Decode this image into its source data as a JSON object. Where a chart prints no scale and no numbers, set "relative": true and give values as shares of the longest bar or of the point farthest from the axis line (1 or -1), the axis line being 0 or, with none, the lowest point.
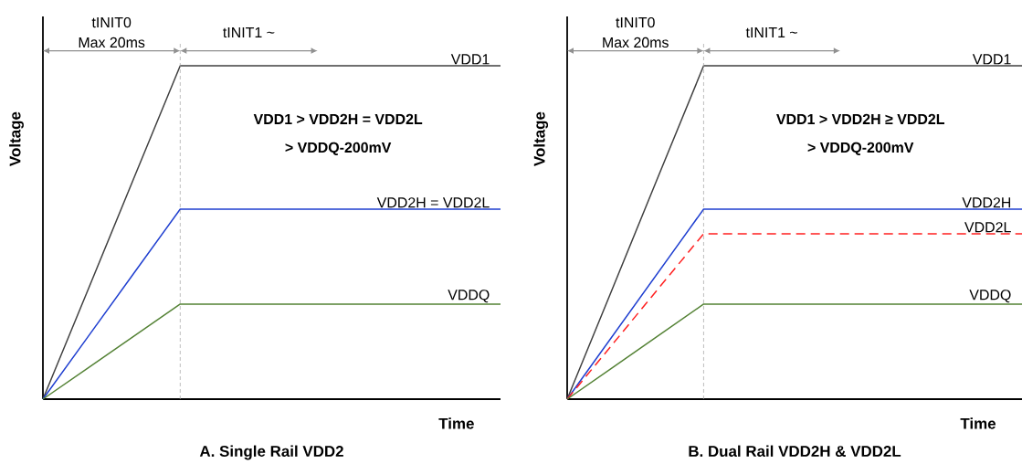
{
  "chart_data": [
    {
      "type": "line",
      "relative": true,
      "title": "A. Single Rail VDD2",
      "xlabel": "Time",
      "ylabel": "Voltage",
      "categories": [
        null,
        null,
        null,
        null,
        null,
        null,
        null,
        null,
        null,
        null,
        null
      ],
      "series": [
        {
          "name": "VDD1",
          "color": "#404040",
          "values": [
            0,
            0.333,
            0.667,
            1,
            1,
            1,
            1,
            1,
            1,
            1,
            1
          ]
        },
        {
          "name": "VDD2H = VDD2L",
          "color": "#1f3fd0",
          "values": [
            0,
            0.19,
            0.38,
            0.57,
            0.57,
            0.57,
            0.57,
            0.57,
            0.57,
            0.57,
            0.57
          ]
        },
        {
          "name": "VDDQ",
          "color": "#548235",
          "values": [
            0,
            0.095,
            0.19,
            0.285,
            0.285,
            0.285,
            0.285,
            0.285,
            0.285,
            0.285,
            0.285
          ]
        }
      ],
      "annotations": [
        "tINIT0",
        "Max 20ms",
        "tINIT1 ~",
        "VDD1 > VDD2H = VDD2L",
        "> VDDQ-200mV"
      ]
    },
    {
      "type": "line",
      "relative": true,
      "title": "B. Dual Rail VDD2H & VDD2L",
      "xlabel": "Time",
      "ylabel": "Voltage",
      "categories": [
        null,
        null,
        null,
        null,
        null,
        null,
        null,
        null,
        null,
        null,
        null
      ],
      "series": [
        {
          "name": "VDD1",
          "color": "#404040",
          "values": [
            0,
            0.333,
            0.667,
            1,
            1,
            1,
            1,
            1,
            1,
            1,
            1
          ]
        },
        {
          "name": "VDD2H",
          "color": "#1f3fd0",
          "values": [
            0,
            0.19,
            0.38,
            0.57,
            0.57,
            0.57,
            0.57,
            0.57,
            0.57,
            0.57,
            0.57
          ]
        },
        {
          "name": "VDD2L",
          "color": "#ff2020",
          "line_style": "dashed",
          "values": [
            0,
            0.165,
            0.331,
            0.496,
            0.496,
            0.496,
            0.496,
            0.496,
            0.496,
            0.496,
            0.496
          ]
        },
        {
          "name": "VDDQ",
          "color": "#548235",
          "values": [
            0,
            0.095,
            0.19,
            0.285,
            0.285,
            0.285,
            0.285,
            0.285,
            0.285,
            0.285,
            0.285
          ]
        }
      ],
      "annotations": [
        "tINIT0",
        "Max 20ms",
        "tINIT1 ~",
        "VDD1 > VDD2H ≥ VDD2L",
        "> VDDQ-200mV"
      ]
    }
  ]
}
